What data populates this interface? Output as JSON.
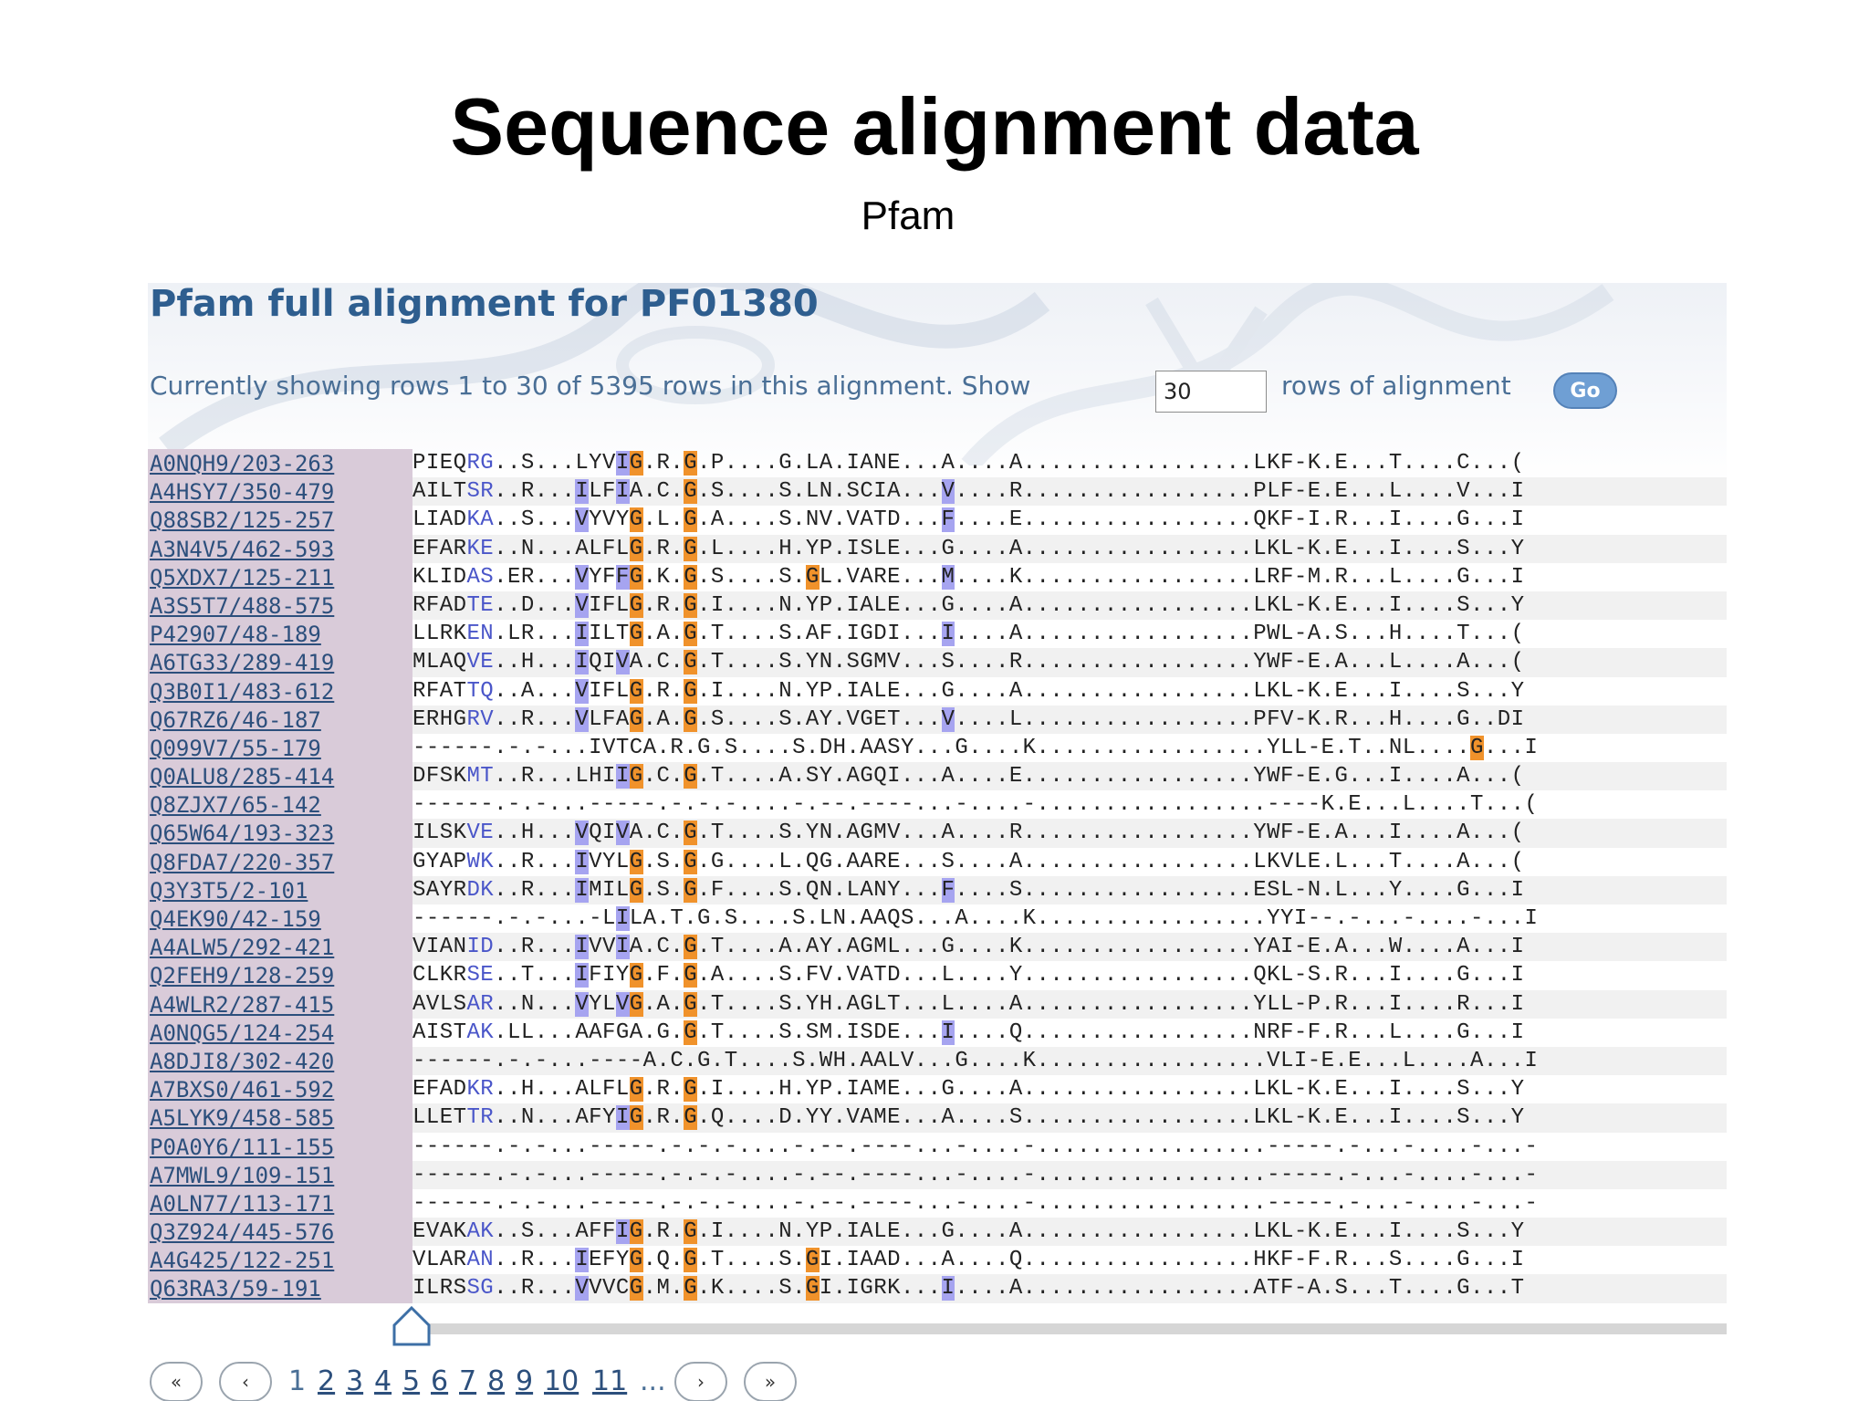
{
  "slide": {
    "title": "Sequence alignment data",
    "subtitle": "Pfam"
  },
  "pfam": {
    "heading": "Pfam full alignment for PF01380",
    "showing_text": "Currently showing rows 1 to 30 of 5395 rows in this alignment. Show",
    "rows_value": "30",
    "rows_suffix": "rows of alignment",
    "go_label": "Go"
  },
  "alignment": {
    "rows": [
      {
        "acc": "A0NQH9/203-263",
        "seq": "PIEQRG..S...LYVIG.R.G.P....G.LA.IANE...A....A.................LKF-K.E...T....C...("
      },
      {
        "acc": "A4HSY7/350-479",
        "seq": "AILTSR..R...ILFIA.C.G.S....S.LN.SCIA...V....R.................PLF-E.E...L....V...I"
      },
      {
        "acc": "Q88SB2/125-257",
        "seq": "LIADKA..S...VYVYG.L.G.A....S.NV.VATD...F....E.................QKF-I.R...I....G...I"
      },
      {
        "acc": "A3N4V5/462-593",
        "seq": "EFARKE..N...ALFLG.R.G.L....H.YP.ISLE...G....A.................LKL-K.E...I....S...Y"
      },
      {
        "acc": "Q5XDX7/125-211",
        "seq": "KLIDAS.ER...VYFFG.K.G.S....S.GL.VARE...M....K.................LRF-M.R...L....G...I"
      },
      {
        "acc": "A3S5T7/488-575",
        "seq": "RFADTE..D...VIFLG.R.G.I....N.YP.IALE...G....A.................LKL-K.E...I....S...Y"
      },
      {
        "acc": "P42907/48-189",
        "seq": "LLRKEN.LR...IILTG.A.G.T....S.AF.IGDI...I....A.................PWL-A.S...H....T...("
      },
      {
        "acc": "A6TG33/289-419",
        "seq": "MLAQVE..H...IQIVA.C.G.T....S.YN.SGMV...S....R.................YWF-E.A...L....A...("
      },
      {
        "acc": "Q3B0I1/483-612",
        "seq": "RFATTQ..A...VIFLG.R.G.I....N.YP.IALE...G....A.................LKL-K.E...I....S...Y"
      },
      {
        "acc": "Q67RZ6/46-187",
        "seq": "ERHGRV..R...VLFAG.A.G.S....S.AY.VGET...V....L.................PFV-K.R...H....G..DI"
      },
      {
        "acc": "Q099V7/55-179",
        "seq": "------.-.-...IVTCA.R.G.S....S.DH.AASY...G....K.................YLL-E.T..NL....G...I"
      },
      {
        "acc": "Q0ALU8/285-414",
        "seq": "DFSKMT..R...LHIIG.C.G.T....A.SY.AGQI...A....E.................YWF-E.G...I....A...("
      },
      {
        "acc": "Q8ZJX7/65-142",
        "seq": "------.-.-...-----.-.-.-....-.--.----...-....-.................----K.E...L....T...("
      },
      {
        "acc": "Q65W64/193-323",
        "seq": "ILSKVE..H...VQIVA.C.G.T....S.YN.AGMV...A....R.................YWF-E.A...I....A...("
      },
      {
        "acc": "Q8FDA7/220-357",
        "seq": "GYAPWK..R...IVYLG.S.G.G....L.QG.AARE...S....A.................LKVLE.L...T....A...("
      },
      {
        "acc": "Q3Y3T5/2-101",
        "seq": "SAYRDK..R...IMILG.S.G.F....S.QN.LANY...F....S.................ESL-N.L...Y....G...I"
      },
      {
        "acc": "Q4EK90/42-159",
        "seq": "------.-.-...-LILA.T.G.S....S.LN.AAQS...A....K.................YYI--.-...-....-...I"
      },
      {
        "acc": "A4ALW5/292-421",
        "seq": "VIANID..R...IVVIA.C.G.T....A.AY.AGML...G....K.................YAI-E.A...W....A...I"
      },
      {
        "acc": "Q2FEH9/128-259",
        "seq": "CLKRSE..T...IFIYG.F.G.A....S.FV.VATD...L....Y.................QKL-S.R...I....G...I"
      },
      {
        "acc": "A4WLR2/287-415",
        "seq": "AVLSAR..N...VYLVG.A.G.T....S.YH.AGLT...L....A.................YLL-P.R...I....R...I"
      },
      {
        "acc": "A0NQG5/124-254",
        "seq": "AISTAK.LL...AAFGA.G.G.T....S.SM.ISDE...I....Q.................NRF-F.R...L....G...I"
      },
      {
        "acc": "A8DJI8/302-420",
        "seq": "------.-.-...----A.C.G.T....S.WH.AALV...G....K.................VLI-E.E...L....A...I"
      },
      {
        "acc": "A7BXS0/461-592",
        "seq": "EFADKR..H...ALFLG.R.G.I....H.YP.IAME...G....A.................LKL-K.E...I....S...Y"
      },
      {
        "acc": "A5LYK9/458-585",
        "seq": "LLETTR..N...AFYIG.R.G.Q....D.YY.VAME...A....S.................LKL-K.E...I....S...Y"
      },
      {
        "acc": "P0A0Y6/111-155",
        "seq": "------.-.-...-----.-.-.-....-.--.----...-....-.................-----.-...-....-...-"
      },
      {
        "acc": "A7MWL9/109-151",
        "seq": "------.-.-...-----.-.-.-....-.--.----...-....-.................-----.-...-....-...-"
      },
      {
        "acc": "A0LN77/113-171",
        "seq": "------.-.-...-----.-.-.-....-.--.----...-....-.................-----.-...-....-...-"
      },
      {
        "acc": "Q3Z924/445-576",
        "seq": "EVAKAK..S...AFFIG.R.G.I....N.YP.IALE...G....A.................LKL-K.E...I....S...Y"
      },
      {
        "acc": "A4G425/122-251",
        "seq": "VLARAN..R...IEFYG.Q.G.T....S.GI.IAAD...A....Q.................HKF-F.R...S....G...I"
      },
      {
        "acc": "Q63RA3/59-191",
        "seq": "ILRSSG..R...VVVCG.M.G.K....S.GI.IGRK...I....A.................ATF-A.S...T....G...T"
      }
    ]
  },
  "pager": {
    "first_label": "«",
    "prev_label": "‹",
    "pages": [
      "1",
      "2",
      "3",
      "4",
      "5",
      "6",
      "7",
      "8",
      "9",
      "10",
      "11"
    ],
    "current_page": "1",
    "ellipsis": "...",
    "next_label": "›",
    "last_label": "»"
  },
  "colors": {
    "heading": "#2e5e8f",
    "link": "#2c4f7c",
    "hydrophobic_highlight": "#a6a4f0",
    "glycine_highlight": "#f0922b",
    "accession_bg": "#d9cbd9"
  }
}
